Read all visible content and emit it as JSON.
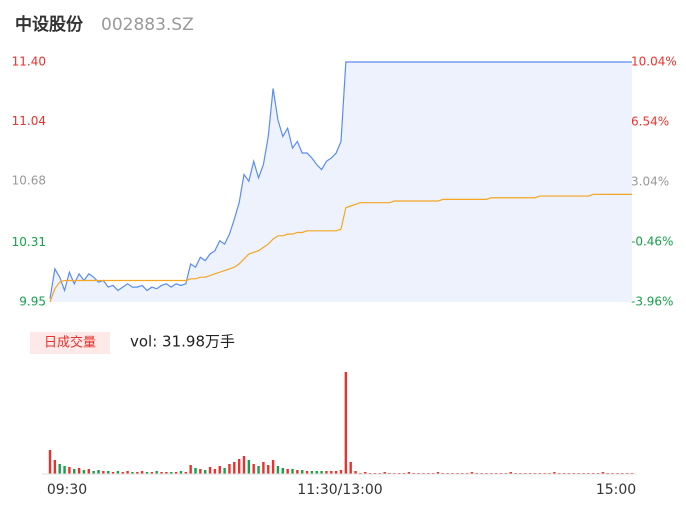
{
  "chart_data": {
    "type": "intraday",
    "title": "中设股份",
    "code": "002883.SZ",
    "ylim": [
      9.95,
      11.4
    ],
    "yticks": [
      {
        "value": 11.4,
        "label": "11.40"
      },
      {
        "value": 11.04,
        "label": "11.04"
      },
      {
        "value": 10.68,
        "label": "10.68"
      },
      {
        "value": 10.31,
        "label": "10.31"
      },
      {
        "value": 9.95,
        "label": "9.95"
      }
    ],
    "y2lim": [
      -3.96,
      10.04
    ],
    "y2ticks": [
      {
        "value": 10.04,
        "label": "10.04%"
      },
      {
        "value": 6.54,
        "label": "6.54%"
      },
      {
        "value": 3.04,
        "label": "3.04%"
      },
      {
        "value": -0.46,
        "label": "-0.46%"
      },
      {
        "value": -3.96,
        "label": "-3.96%"
      }
    ],
    "tick_colors": [
      "#e8322e",
      "#e8322e",
      "#999999",
      "#16a04a",
      "#16a04a"
    ],
    "x_labels": [
      "09:30",
      "11:30/13:00",
      "15:00"
    ],
    "series": [
      {
        "name": "price",
        "color": "#5b8def",
        "values": [
          9.97,
          10.15,
          10.1,
          10.02,
          10.13,
          10.06,
          10.12,
          10.08,
          10.12,
          10.1,
          10.07,
          10.08,
          10.04,
          10.05,
          10.02,
          10.04,
          10.06,
          10.04,
          10.04,
          10.05,
          10.02,
          10.04,
          10.03,
          10.05,
          10.06,
          10.04,
          10.06,
          10.05,
          10.06,
          10.18,
          10.16,
          10.22,
          10.2,
          10.24,
          10.26,
          10.32,
          10.3,
          10.36,
          10.45,
          10.55,
          10.72,
          10.68,
          10.8,
          10.7,
          10.78,
          10.95,
          11.24,
          11.05,
          10.95,
          11.0,
          10.88,
          10.92,
          10.85,
          10.85,
          10.82,
          10.78,
          10.75,
          10.8,
          10.82,
          10.85,
          10.92,
          11.4,
          11.4,
          11.4,
          11.4,
          11.4,
          11.4,
          11.4,
          11.4,
          11.4,
          11.4,
          11.4,
          11.4,
          11.4,
          11.4,
          11.4,
          11.4,
          11.4,
          11.4,
          11.4,
          11.4,
          11.4,
          11.4,
          11.4,
          11.4,
          11.4,
          11.4,
          11.4,
          11.4,
          11.4,
          11.4,
          11.4,
          11.4,
          11.4,
          11.4,
          11.4,
          11.4,
          11.4,
          11.4,
          11.4,
          11.4,
          11.4,
          11.4,
          11.4,
          11.4,
          11.4,
          11.4,
          11.4,
          11.4,
          11.4,
          11.4,
          11.4,
          11.4,
          11.4,
          11.4,
          11.4,
          11.4,
          11.4,
          11.4,
          11.4,
          11.4
        ]
      },
      {
        "name": "average",
        "color": "#f5a623",
        "values": [
          9.95,
          10.03,
          10.07,
          10.08,
          10.08,
          10.08,
          10.08,
          10.08,
          10.08,
          10.08,
          10.08,
          10.08,
          10.08,
          10.08,
          10.08,
          10.08,
          10.08,
          10.08,
          10.08,
          10.08,
          10.08,
          10.08,
          10.08,
          10.08,
          10.08,
          10.08,
          10.08,
          10.08,
          10.08,
          10.09,
          10.09,
          10.1,
          10.1,
          10.11,
          10.12,
          10.13,
          10.14,
          10.15,
          10.16,
          10.18,
          10.21,
          10.24,
          10.25,
          10.26,
          10.28,
          10.3,
          10.33,
          10.35,
          10.35,
          10.36,
          10.36,
          10.37,
          10.37,
          10.38,
          10.38,
          10.38,
          10.38,
          10.38,
          10.38,
          10.38,
          10.39,
          10.52,
          10.53,
          10.54,
          10.55,
          10.55,
          10.55,
          10.55,
          10.55,
          10.55,
          10.55,
          10.56,
          10.56,
          10.56,
          10.56,
          10.56,
          10.56,
          10.56,
          10.56,
          10.56,
          10.56,
          10.57,
          10.57,
          10.57,
          10.57,
          10.57,
          10.57,
          10.57,
          10.57,
          10.57,
          10.57,
          10.58,
          10.58,
          10.58,
          10.58,
          10.58,
          10.58,
          10.58,
          10.58,
          10.58,
          10.58,
          10.59,
          10.59,
          10.59,
          10.59,
          10.59,
          10.59,
          10.59,
          10.59,
          10.59,
          10.59,
          10.59,
          10.6,
          10.6,
          10.6,
          10.6,
          10.6,
          10.6,
          10.6,
          10.6,
          10.6
        ]
      }
    ],
    "volume_title": "日成交量",
    "volume_label": "vol: 31.98万手",
    "volume": [
      24,
      14,
      10,
      8,
      7,
      5,
      6,
      4,
      5,
      3,
      4,
      3,
      3,
      2,
      3,
      2,
      3,
      2,
      2,
      3,
      2,
      2,
      3,
      2,
      2,
      2,
      2,
      3,
      2,
      9,
      6,
      5,
      4,
      7,
      5,
      8,
      6,
      10,
      12,
      15,
      18,
      14,
      10,
      8,
      12,
      9,
      14,
      8,
      6,
      5,
      5,
      4,
      4,
      3,
      3,
      3,
      3,
      3,
      3,
      3,
      4,
      102,
      12,
      3,
      1,
      2,
      1,
      1,
      1,
      2,
      1,
      1,
      1,
      1,
      2,
      1,
      1,
      1,
      1,
      1,
      2,
      1,
      1,
      1,
      1,
      1,
      1,
      2,
      1,
      1,
      1,
      1,
      1,
      1,
      1,
      2,
      1,
      1,
      1,
      1,
      1,
      1,
      1,
      1,
      2,
      1,
      1,
      1,
      1,
      1,
      1,
      1,
      1,
      1,
      2,
      1,
      1,
      1,
      1,
      1,
      1
    ]
  }
}
